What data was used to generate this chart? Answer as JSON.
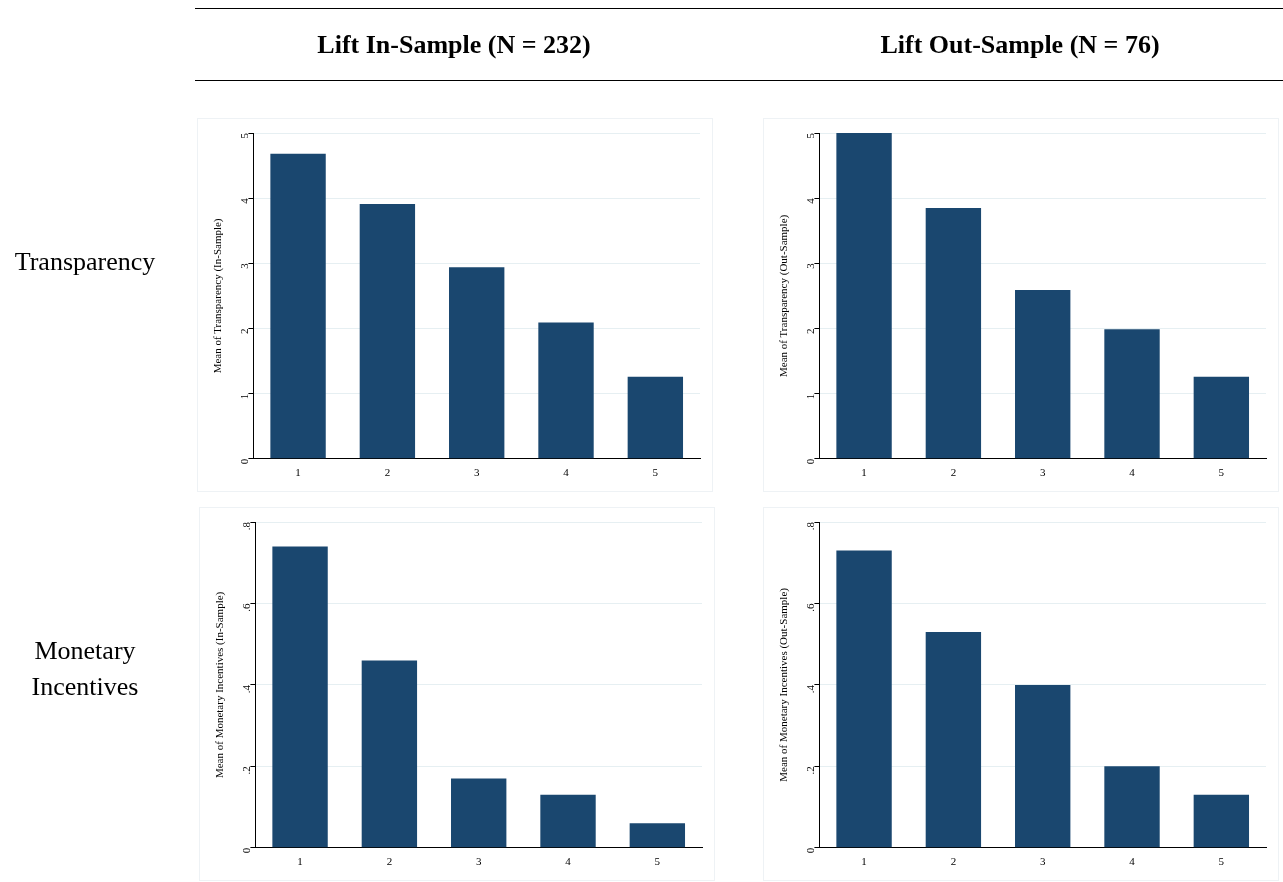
{
  "chart_data": [
    {
      "type": "bar",
      "title": "Lift In-Sample (N = 232)",
      "annotations": [
        "Transparency"
      ],
      "ylabel": "Mean of Transparency (In-Sample)",
      "categories": [
        "1",
        "2",
        "3",
        "4",
        "5"
      ],
      "values": [
        4.68,
        3.91,
        2.94,
        2.09,
        1.26
      ],
      "color": "#1a476f",
      "ylim": [
        0,
        5
      ],
      "yticks": [
        0,
        1,
        2,
        3,
        4,
        5
      ],
      "grid": "y"
    },
    {
      "type": "bar",
      "title": "Lift Out-Sample (N = 76)",
      "ylabel": "Mean of Transparency (Out-Sample)",
      "categories": [
        "1",
        "2",
        "3",
        "4",
        "5"
      ],
      "values": [
        5.0,
        3.85,
        2.59,
        1.99,
        1.26
      ],
      "color": "#1a476f",
      "ylim": [
        0,
        5
      ],
      "yticks": [
        0,
        1,
        2,
        3,
        4,
        5
      ],
      "grid": "y"
    },
    {
      "type": "bar",
      "annotations": [
        "Monetary Incentives"
      ],
      "ylabel": "Mean of Monetary Incentives (In-Sample)",
      "categories": [
        "1",
        "2",
        "3",
        "4",
        "5"
      ],
      "values": [
        0.74,
        0.46,
        0.17,
        0.13,
        0.06
      ],
      "color": "#1a476f",
      "ylim": [
        0,
        0.8
      ],
      "yticks": [
        0,
        {
          "value": 0.2,
          "label": ".2"
        },
        {
          "value": 0.4,
          "label": ".4"
        },
        {
          "value": 0.6,
          "label": ".6"
        },
        {
          "value": 0.8,
          "label": ".8"
        }
      ],
      "grid": "y"
    },
    {
      "type": "bar",
      "ylabel": "Mean of Monetary Incentives (Out-Sample)",
      "categories": [
        "1",
        "2",
        "3",
        "4",
        "5"
      ],
      "values": [
        0.73,
        0.53,
        0.4,
        0.2,
        0.13
      ],
      "color": "#1a476f",
      "ylim": [
        0,
        0.8
      ],
      "yticks": [
        0,
        {
          "value": 0.2,
          "label": ".2"
        },
        {
          "value": 0.4,
          "label": ".4"
        },
        {
          "value": 0.6,
          "label": ".6"
        },
        {
          "value": 0.8,
          "label": ".8"
        }
      ],
      "grid": "y"
    }
  ]
}
